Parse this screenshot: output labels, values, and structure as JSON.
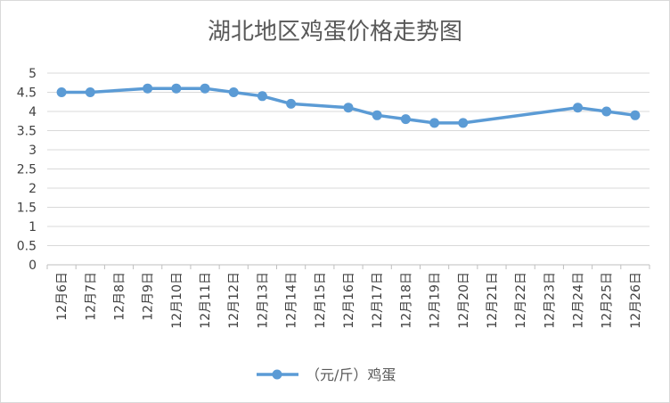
{
  "chart_data": {
    "type": "line",
    "title": "湖北地区鸡蛋价格走势图",
    "xlabel": "",
    "ylabel": "",
    "categories": [
      "12月6日",
      "12月7日",
      "12月8日",
      "12月9日",
      "12月10日",
      "12月11日",
      "12月12日",
      "12月13日",
      "12月14日",
      "12月15日",
      "12月16日",
      "12月17日",
      "12月18日",
      "12月19日",
      "12月20日",
      "12月21日",
      "12月22日",
      "12月23日",
      "12月24日",
      "12月25日",
      "12月26日"
    ],
    "yticks": [
      "0",
      "0.5",
      "1",
      "1.5",
      "2",
      "2.5",
      "3",
      "3.5",
      "4",
      "4.5",
      "5"
    ],
    "ylim": [
      0,
      5
    ],
    "grid": true,
    "legend_position": "bottom",
    "series": [
      {
        "name": "（元/斤）鸡蛋",
        "color": "#5b9bd5",
        "values": [
          4.5,
          4.5,
          null,
          4.6,
          4.6,
          4.6,
          4.5,
          4.4,
          4.2,
          null,
          4.1,
          3.9,
          3.8,
          3.7,
          3.7,
          null,
          null,
          null,
          4.1,
          4.0,
          3.9
        ]
      }
    ]
  }
}
